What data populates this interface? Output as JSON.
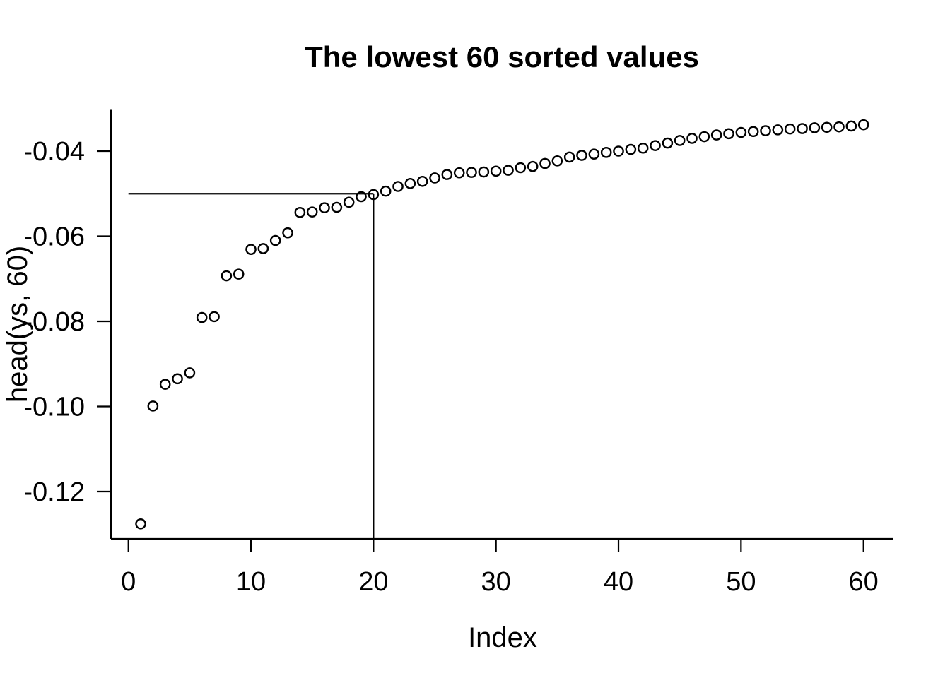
{
  "figure": {
    "title": "The lowest 60 sorted values",
    "xlabel": "Index",
    "ylabel": "head(ys, 60)"
  },
  "chart_data": {
    "type": "scatter",
    "title": "The lowest 60 sorted values",
    "xlabel": "Index",
    "ylabel": "head(ys, 60)",
    "marker": "open-circle",
    "grid": false,
    "legend": null,
    "colors": {
      "points": "#000000",
      "lines": "#000000",
      "background": "#ffffff"
    },
    "xlim": [
      -1.4,
      62.4
    ],
    "ylim": [
      -0.1311,
      -0.0303
    ],
    "xticks": {
      "values": [
        0,
        10,
        20,
        30,
        40,
        50,
        60
      ],
      "labels": [
        "0",
        "10",
        "20",
        "30",
        "40",
        "50",
        "60"
      ]
    },
    "yticks": {
      "values": [
        -0.04,
        -0.06,
        -0.08,
        -0.1,
        -0.12
      ],
      "labels": [
        "-0.04",
        "-0.06",
        "-0.08",
        "-0.10",
        "-0.12"
      ]
    },
    "x": [
      1,
      2,
      3,
      4,
      5,
      6,
      7,
      8,
      9,
      10,
      11,
      12,
      13,
      14,
      15,
      16,
      17,
      18,
      19,
      20,
      21,
      22,
      23,
      24,
      25,
      26,
      27,
      28,
      29,
      30,
      31,
      32,
      33,
      34,
      35,
      36,
      37,
      38,
      39,
      40,
      41,
      42,
      43,
      44,
      45,
      46,
      47,
      48,
      49,
      50,
      51,
      52,
      53,
      54,
      55,
      56,
      57,
      58,
      59,
      60
    ],
    "y": [
      -0.1276,
      -0.0999,
      -0.0948,
      -0.0935,
      -0.0921,
      -0.0791,
      -0.0789,
      -0.0693,
      -0.0689,
      -0.0631,
      -0.0629,
      -0.061,
      -0.0592,
      -0.0544,
      -0.0543,
      -0.0533,
      -0.0532,
      -0.052,
      -0.0507,
      -0.0502,
      -0.0494,
      -0.0483,
      -0.0476,
      -0.0471,
      -0.0463,
      -0.0455,
      -0.0451,
      -0.045,
      -0.0449,
      -0.0447,
      -0.0445,
      -0.0439,
      -0.0436,
      -0.0429,
      -0.0423,
      -0.0414,
      -0.041,
      -0.0407,
      -0.0403,
      -0.04,
      -0.0396,
      -0.0393,
      -0.0387,
      -0.0381,
      -0.0375,
      -0.037,
      -0.0366,
      -0.0362,
      -0.0359,
      -0.0356,
      -0.0354,
      -0.0352,
      -0.035,
      -0.0348,
      -0.0347,
      -0.0345,
      -0.0344,
      -0.0343,
      -0.0341,
      -0.0338
    ],
    "annotations": {
      "hline_segment": {
        "y": -0.05,
        "from_x": 0,
        "to_x": 20
      },
      "vline_segment": {
        "x": 20,
        "from_y": "axis-bottom",
        "to_y": -0.05
      }
    }
  }
}
